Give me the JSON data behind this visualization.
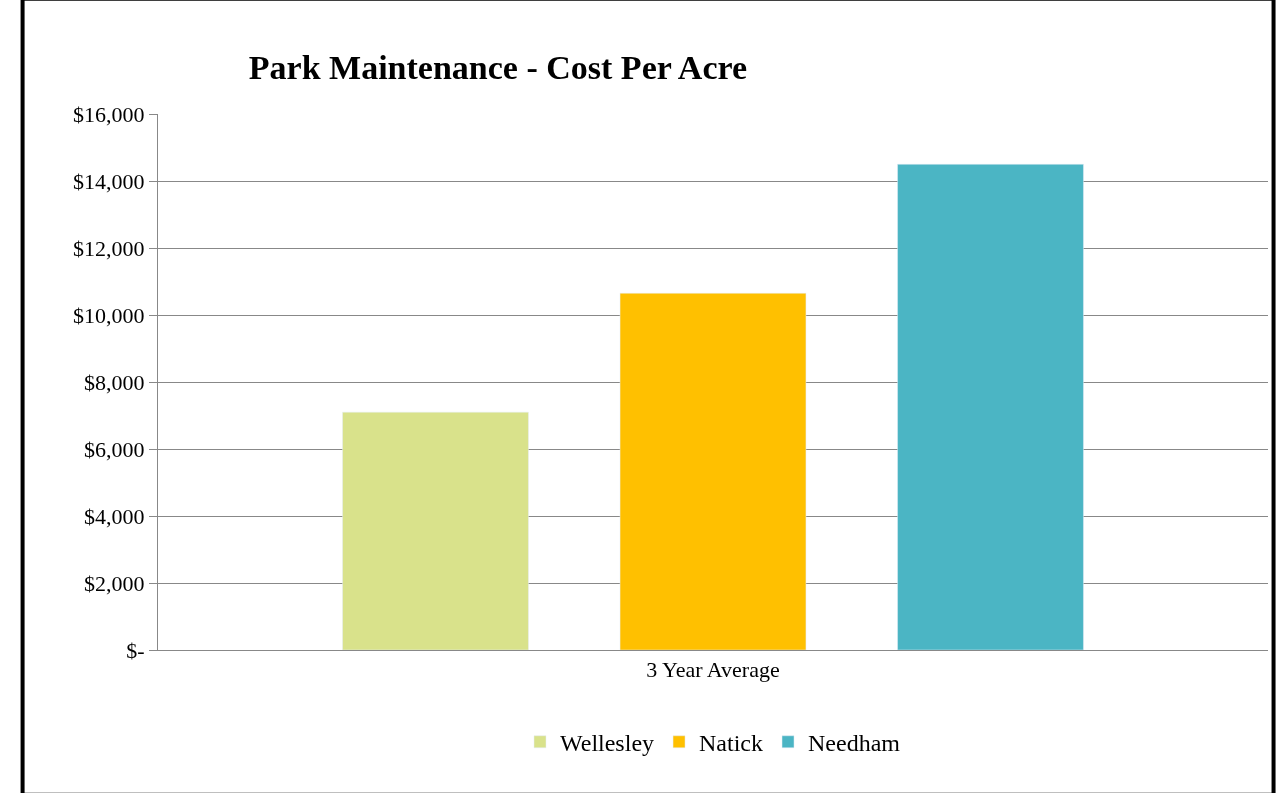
{
  "chart_data": {
    "type": "bar",
    "title": "Park Maintenance - Cost Per Acre",
    "categories": [
      "3 Year Average"
    ],
    "series": [
      {
        "name": "Wellesley",
        "color": "#d9e28b",
        "values": [
          7100
        ]
      },
      {
        "name": "Natick",
        "color": "#ffc000",
        "values": [
          10650
        ]
      },
      {
        "name": "Needham",
        "color": "#4bb5c4",
        "values": [
          14500
        ]
      }
    ],
    "ylim": [
      0,
      16000
    ],
    "yticks": [
      {
        "value": 0,
        "label": "$-"
      },
      {
        "value": 2000,
        "label": "$2,000"
      },
      {
        "value": 4000,
        "label": "$4,000"
      },
      {
        "value": 6000,
        "label": "$6,000"
      },
      {
        "value": 8000,
        "label": "$8,000"
      },
      {
        "value": 10000,
        "label": "$10,000"
      },
      {
        "value": 12000,
        "label": "$12,000"
      },
      {
        "value": 14000,
        "label": "$14,000"
      },
      {
        "value": 16000,
        "label": "$16,000"
      }
    ],
    "grid": "y",
    "legend": "bottom"
  }
}
